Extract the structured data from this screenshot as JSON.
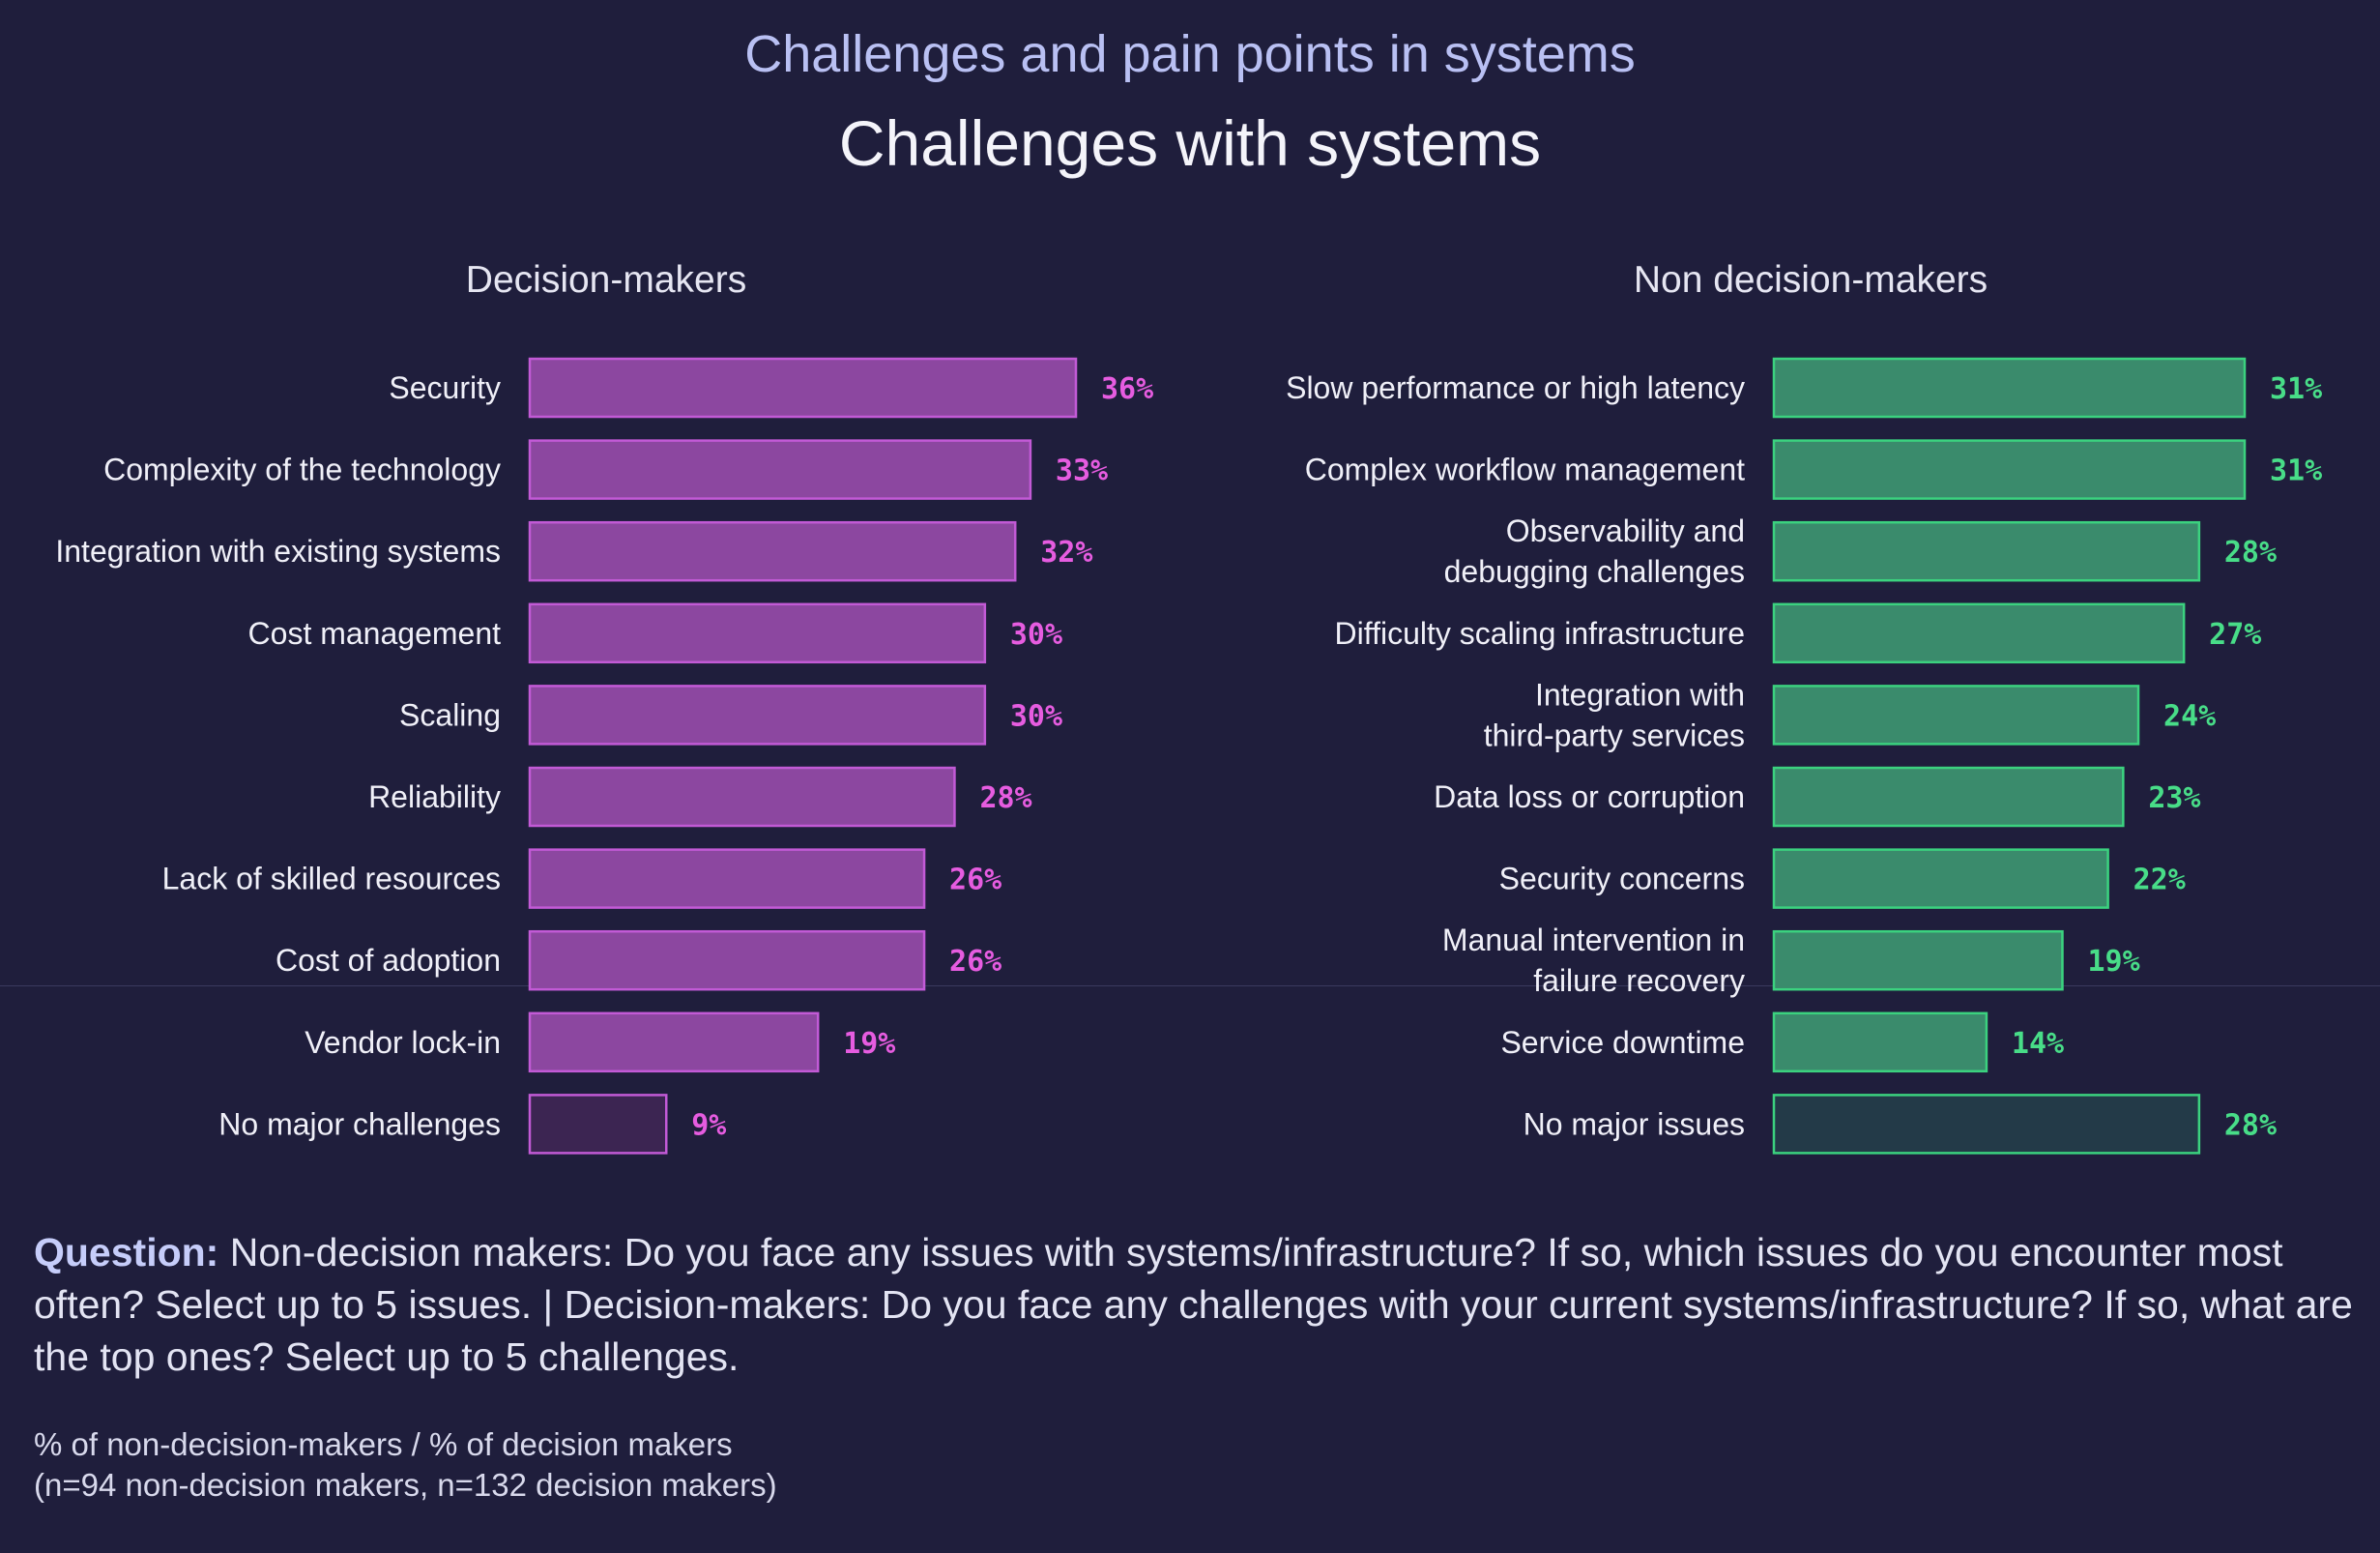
{
  "suptitle": "Challenges and pain points in systems",
  "title": "Challenges with systems",
  "chart_data": [
    {
      "type": "bar",
      "orientation": "horizontal",
      "title": "Decision-makers",
      "categories": [
        "Security",
        "Complexity of the technology",
        "Integration with existing systems",
        "Cost management",
        "Scaling",
        "Reliability",
        "Lack of skilled resources",
        "Cost of adoption",
        "Vendor lock-in",
        "No major challenges"
      ],
      "values": [
        36,
        33,
        32,
        30,
        30,
        28,
        26,
        26,
        19,
        9
      ],
      "value_suffix": "%",
      "bar_color": "#8c47a0",
      "bar_stroke": "#c25ad6",
      "highlight_last_color": "#3c2552",
      "label_color": "#e65ce0",
      "xlim": [
        0,
        36
      ]
    },
    {
      "type": "bar",
      "orientation": "horizontal",
      "title": "Non decision-makers",
      "categories": [
        "Slow performance or high latency",
        "Complex workflow management",
        "Observability and\ndebugging challenges",
        "Difficulty scaling infrastructure",
        "Integration with\nthird-party services",
        "Data loss or corruption",
        "Security concerns",
        "Manual intervention in\nfailure recovery",
        "Service downtime",
        "No major issues"
      ],
      "values": [
        31,
        31,
        28,
        27,
        24,
        23,
        22,
        19,
        14,
        28
      ],
      "value_suffix": "%",
      "bar_color": "#3a8b6c",
      "bar_stroke": "#3bd27f",
      "highlight_last_color": "#233a48",
      "label_color": "#48dd88",
      "xlim": [
        0,
        31
      ]
    }
  ],
  "question": {
    "label": "Question:",
    "text": " Non-decision makers: Do you face any issues with systems/infrastructure? If so, which issues do you encounter most often? Select up to 5 issues. | Decision-makers: Do you face any challenges with your current systems/infrastructure? If so, what are the top ones? Select up to 5 challenges."
  },
  "footnote": {
    "line1": "% of non-decision-makers / % of decision makers",
    "line2": "(n=94 non-decision makers, n=132 decision makers)"
  }
}
